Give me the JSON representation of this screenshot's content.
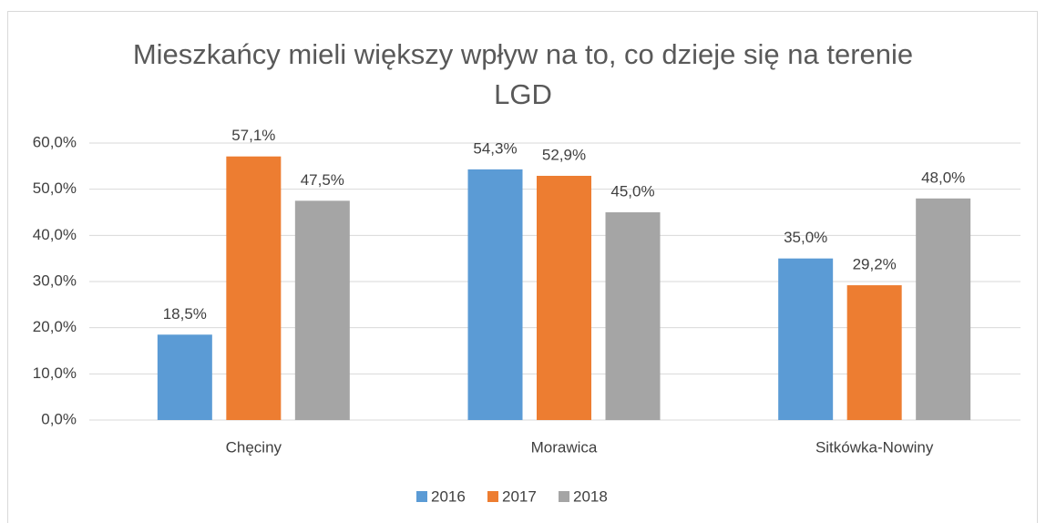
{
  "chart_data": {
    "type": "bar",
    "title": "Mieszkańcy mieli większy wpływ na to, co dzieje się na terenie LGD",
    "categories": [
      "Chęciny",
      "Morawica",
      "Sitkówka-Nowiny"
    ],
    "series": [
      {
        "name": "2016",
        "color": "#5b9bd5",
        "values": [
          18.5,
          54.3,
          35.0
        ],
        "value_labels": [
          "18,5%",
          "54,3%",
          "35,0%"
        ]
      },
      {
        "name": "2017",
        "color": "#ed7d31",
        "values": [
          57.1,
          52.9,
          29.2
        ],
        "value_labels": [
          "57,1%",
          "52,9%",
          "29,2%"
        ]
      },
      {
        "name": "2018",
        "color": "#a5a5a5",
        "values": [
          47.5,
          45.0,
          48.0
        ],
        "value_labels": [
          "47,5%",
          "45,0%",
          "48,0%"
        ]
      }
    ],
    "ylim": [
      0,
      60
    ],
    "yticks": [
      {
        "value": 0,
        "label": "0,0%"
      },
      {
        "value": 10,
        "label": "10,0%"
      },
      {
        "value": 20,
        "label": "20,0%"
      },
      {
        "value": 30,
        "label": "30,0%"
      },
      {
        "value": 40,
        "label": "40,0%"
      },
      {
        "value": 50,
        "label": "50,0%"
      },
      {
        "value": 60,
        "label": "60,0%"
      }
    ],
    "grid": true,
    "legend": "bottom"
  }
}
